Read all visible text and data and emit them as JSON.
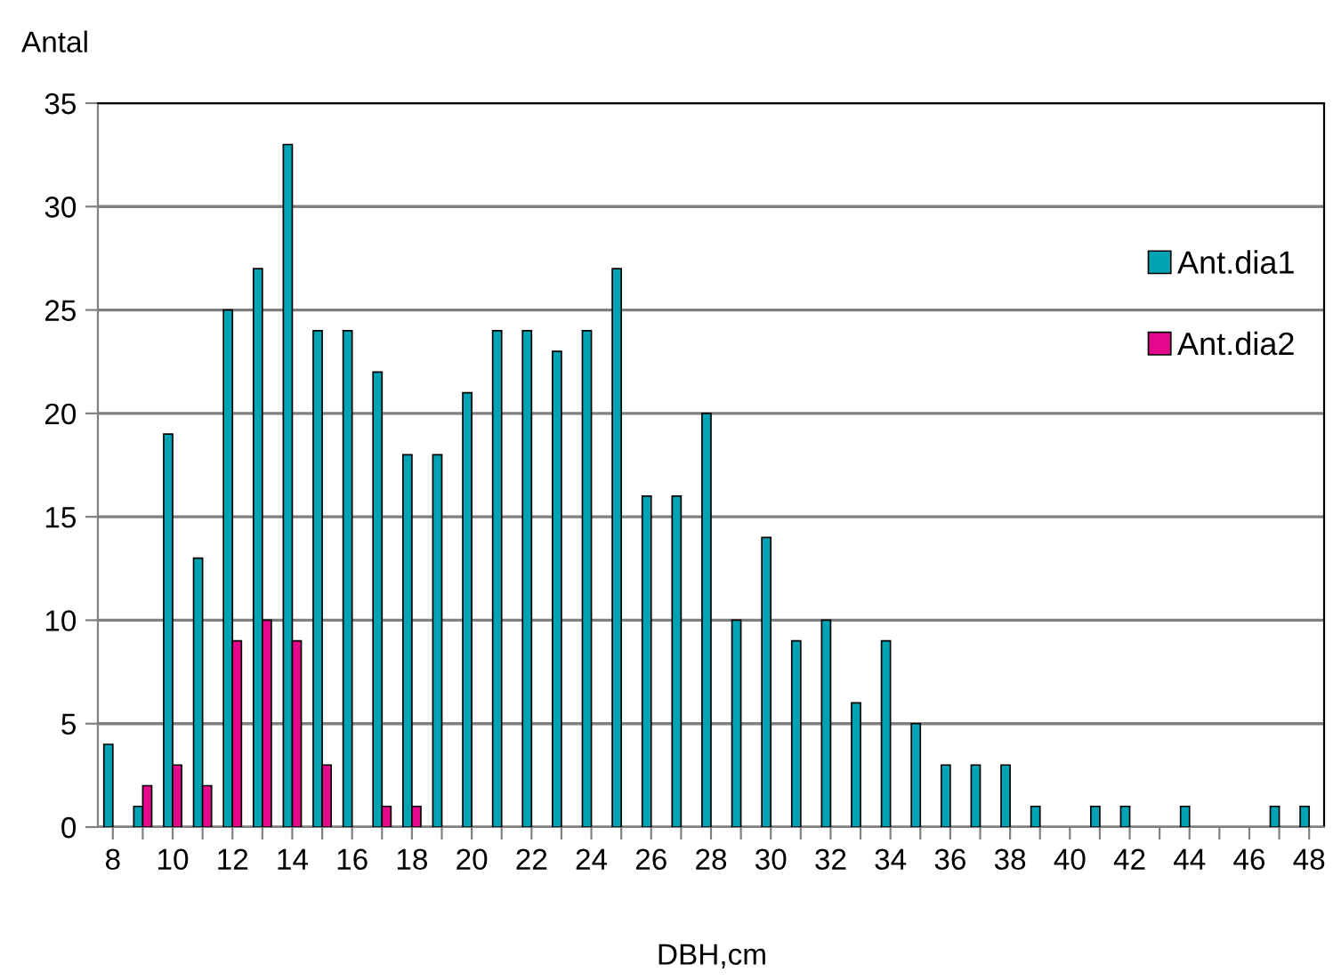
{
  "chart_data": {
    "type": "bar",
    "ylabel": "Antal",
    "xlabel": "DBH,cm",
    "categories": [
      "8",
      null,
      "10",
      null,
      "12",
      null,
      "14",
      null,
      "16",
      null,
      "18",
      null,
      "20",
      null,
      "22",
      null,
      "24",
      null,
      "26",
      null,
      "28",
      null,
      "30",
      null,
      "32",
      null,
      "34",
      null,
      "36",
      null,
      "38",
      null,
      "40",
      null,
      "42",
      null,
      "44",
      null,
      "46",
      null,
      "48"
    ],
    "series": [
      {
        "name": "Ant.dia1",
        "color": "#00a3b4",
        "values": [
          4,
          1,
          19,
          13,
          25,
          27,
          33,
          24,
          24,
          22,
          18,
          18,
          21,
          24,
          24,
          23,
          24,
          27,
          16,
          16,
          20,
          10,
          14,
          9,
          10,
          6,
          9,
          5,
          3,
          3,
          3,
          1,
          null,
          1,
          1,
          null,
          1,
          null,
          null,
          1,
          1
        ]
      },
      {
        "name": "Ant.dia2",
        "color": "#e6088c",
        "values": [
          null,
          2,
          3,
          2,
          9,
          10,
          9,
          3,
          null,
          1,
          1,
          null,
          null,
          null,
          null,
          null,
          null,
          null,
          null,
          null,
          null,
          null,
          null,
          null,
          null,
          null,
          null,
          null,
          null,
          null,
          null,
          null,
          null,
          null,
          null,
          null,
          null,
          null,
          null,
          null,
          null
        ]
      }
    ],
    "ylim": [
      0,
      35
    ],
    "yticks": [
      0,
      5,
      10,
      15,
      20,
      25,
      30,
      35
    ],
    "grid": "y",
    "legend": "right"
  }
}
